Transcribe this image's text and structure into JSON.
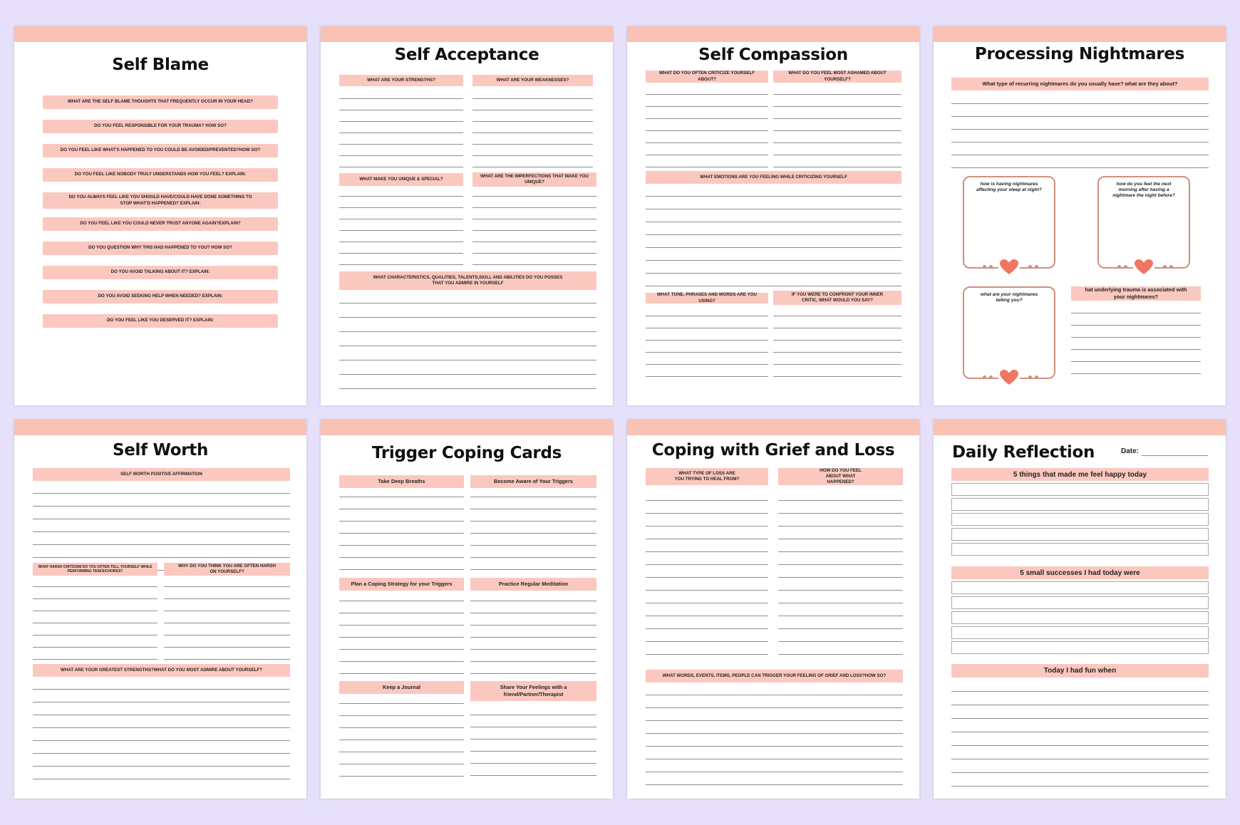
{
  "colors": {
    "background": "#e6e0fa",
    "accent_bar": "#f9c2b5",
    "prompt_bar": "#fbc8bf",
    "heart": "#f07563"
  },
  "pages": {
    "self_blame": {
      "title": "Self Blame",
      "prompts": [
        "WHAT ARE THE SELF BLAME THOUGHTS THAT FREQUENTLY OCCUR IN YOUR HEAD?",
        "DO YOU FEEL RESPONSIBLE FOR YOUR TRAUMA? HOW SO?",
        "DO YOU FEEL LIKE WHAT'S HAPPENED TO YOU COULD BE AVOIDED/PREVENTED?HOW SO?",
        "DO YOU FEEL LIKE NOBODY TRULY UNDERSTANDS HOW YOU FEEL? EXPLAIN:",
        "DO YOU ALWAYS FEEL LIKE YOU SHOULD HAVE/COULD HAVE DONE SOMETHING TO STOP WHAT'D HAPPENED? EXPLAIN:",
        "DO YOU FEEL LIKE YOU COULD NEVER TRUST  ANYONE AGAIN?EXPLAIN?",
        "DO YOU QUESTION WHY THIS HAD HAPPENED TO YOU? HOW SO?",
        "DO YOU AVOID TALKING ABOUT IT? EXPLAIN:",
        "DO YOU AVOID SEEKING HELP WHEN NEEDED? EXPLAIN:",
        "DO YOU FEEL LIKE YOU DESERVED IT? EXPLAIN:"
      ]
    },
    "self_acceptance": {
      "title": "Self Acceptance",
      "strengths": "WHAT ARE YOUR STRENGTHS?",
      "weaknesses": "WHAT ARE YOUR WEAKNESSES?",
      "unique": "WHAT MAKE YOU UNIQUE & SPECIAL?",
      "imperfections": "WHAT ARE THE IMPERFECTIONS THAT MAKE YOU UNIQUE?",
      "characteristics": "WHAT CHARACTERISTICS, QUALITIES, TALENTS,SKILL AND ABILITIES DO YOU POSSES THAT YOU ADMIRE IN YOURSELF"
    },
    "self_compassion": {
      "title": "Self Compassion",
      "criticize": "WHAT DO YOU OFTEN CRITICIZE YOURSELF ABOUT?",
      "ashamed": "WHAT DO YOU FEEL MOST ASHAMED ABOUT YOURSELF?",
      "emotions": "WHAT EMOTIONS ARE YOU FEELING WHILE CRITICIZING YOURSELF",
      "tone": "WHAT TONE, PHRASES AND WORDS ARE YOU USING?",
      "confront": "IF YOU WERE TO CONFRONT YOUR INNER CRITIC, WHAT WOULD YOU SAY?"
    },
    "nightmares": {
      "title": "Processing Nightmares",
      "recurring": "What type of recurring nightmares do you usually have? what are they about?",
      "box_sleep": "how is having nightmares affecting your sleep at night?",
      "box_morning": "how do you feel the next morning after having a nightmare the night before?",
      "box_telling": "what are your nightmares telling you?",
      "trauma": "hat underlying trauma is associated with your nightmares?"
    },
    "self_worth": {
      "title": "Self Worth",
      "affirmation": "SELF WORTH POSITIVE AFFIRMATION",
      "harsh": "WHAT HARSH CRITICISM DO YOU OFTEN TELL YOURSELF WHILE PERFORMING TASKS/CHORES?",
      "why_harsh": "WHY DO YOU THINK YOU ARE OFTEN HARSH ON YOURSELF?",
      "greatest": "WHAT ARE YOUR GREATEST STRENGTHS?WHAT DO YOU MOST ADMIRE ABOUT YOURSELF?"
    },
    "trigger_cards": {
      "title": "Trigger Coping Cards",
      "cards": [
        "Take Deep Breaths",
        "Become Aware of Your Triggers",
        "Plan a Coping Strategy for your Triggers",
        "Practice Regular Meditation",
        "Keep a Journal",
        "Share Your Feelings with a friend/Partner/Therapist"
      ]
    },
    "grief": {
      "title": "Coping with Grief and Loss",
      "loss": "WHAT TYPE OF LOSS ARE YOU TRYING TO HEAL FROM?",
      "feel": "HOW DO YOU FEEL ABOUT WHAT HAPPENED?",
      "triggers": "WHAT WORDS, EVENTS, ITEMS, PEOPLE CAN TRIGGER YOUR FEELING OF GRIEF AND LOSS?HOW SO?"
    },
    "daily": {
      "title": "Daily Reflection",
      "date_label": "Date:",
      "happy": "5 things that made me feel happy today",
      "successes": "5 small successes I had today were",
      "fun": "Today I had fun when"
    }
  }
}
